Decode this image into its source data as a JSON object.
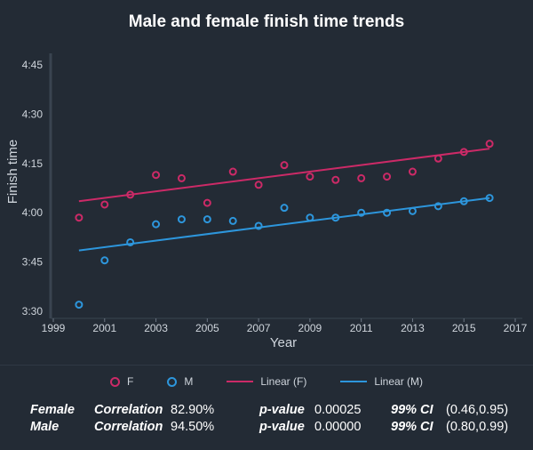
{
  "title": "Male and female finish time trends",
  "chart_data": {
    "type": "scatter",
    "title": "Male and female finish time trends",
    "xlabel": "Year",
    "ylabel": "Finish time",
    "xlim": [
      1999,
      2017
    ],
    "ylim_minutes": [
      210,
      285
    ],
    "x_ticks": [
      "1999",
      "2001",
      "2003",
      "2005",
      "2007",
      "2009",
      "2011",
      "2013",
      "2015",
      "2017"
    ],
    "y_ticks": [
      {
        "label": "3:30",
        "minutes": 210
      },
      {
        "label": "3:45",
        "minutes": 225
      },
      {
        "label": "4:00",
        "minutes": 240
      },
      {
        "label": "4:15",
        "minutes": 255
      },
      {
        "label": "4:30",
        "minutes": 270
      },
      {
        "label": "4:45",
        "minutes": 285
      }
    ],
    "grid": false,
    "x": [
      2000,
      2001,
      2002,
      2003,
      2004,
      2005,
      2006,
      2007,
      2008,
      2009,
      2010,
      2011,
      2012,
      2013,
      2014,
      2015,
      2016
    ],
    "series": [
      {
        "name": "F",
        "color": "#cc2a67",
        "values_minutes": [
          238.5,
          242.5,
          245.5,
          251.5,
          250.5,
          243,
          252.5,
          248.5,
          254.5,
          251,
          250,
          250.5,
          251,
          252.5,
          256.5,
          258.5,
          261
        ]
      },
      {
        "name": "M",
        "color": "#2d96dc",
        "values_minutes": [
          212,
          225.5,
          231,
          236.5,
          238,
          238,
          237.5,
          236,
          241.5,
          238.5,
          238.5,
          240,
          240,
          240.5,
          242,
          243.5,
          244.5
        ]
      }
    ],
    "trendlines": [
      {
        "name": "Linear (F)",
        "color": "#cc2a67",
        "start": [
          2000,
          243.5
        ],
        "end": [
          2016,
          259.5
        ]
      },
      {
        "name": "Linear (M)",
        "color": "#2d96dc",
        "start": [
          2000,
          228.5
        ],
        "end": [
          2016,
          244.5
        ]
      }
    ]
  },
  "legend": [
    {
      "label": "F",
      "kind": "circle",
      "color": "#cc2a67"
    },
    {
      "label": "M",
      "kind": "circle",
      "color": "#2d96dc"
    },
    {
      "label": "Linear (F)",
      "kind": "line",
      "color": "#cc2a67"
    },
    {
      "label": "Linear (M)",
      "kind": "line",
      "color": "#2d96dc"
    }
  ],
  "stats": [
    {
      "group": "Female",
      "corr_label": "Correlation",
      "corr": "82.90%",
      "p_label": "p-value",
      "p": "0.00025",
      "ci_label": "99% CI",
      "ci": "(0.46,0.95)"
    },
    {
      "group": "Male",
      "corr_label": "Correlation",
      "corr": "94.50%",
      "p_label": "p-value",
      "p": "0.00000",
      "ci_label": "99% CI",
      "ci": "(0.80,0.99)"
    }
  ]
}
